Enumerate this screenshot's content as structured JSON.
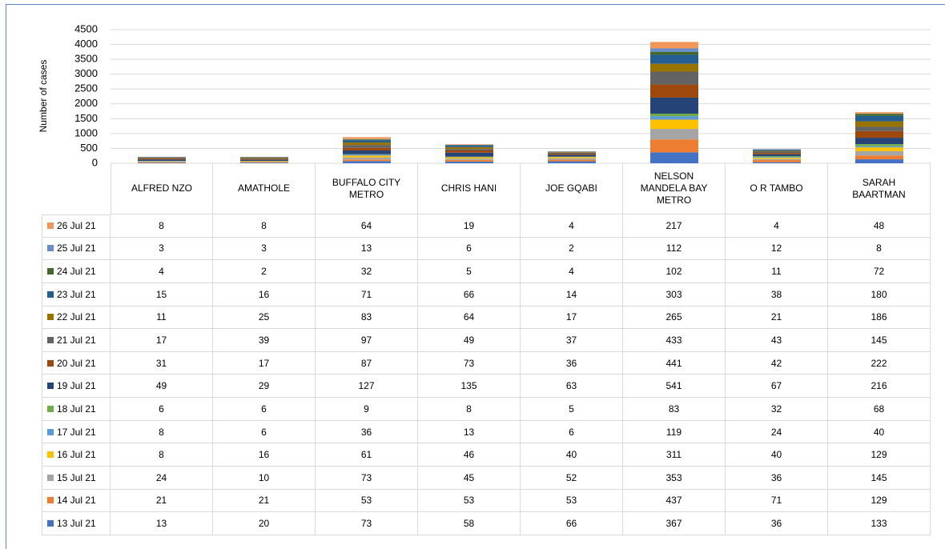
{
  "chart_data": {
    "type": "bar",
    "stacked": true,
    "y_label": "Number of cases",
    "categories": [
      "ALFRED NZO",
      "AMATHOLE",
      "BUFFALO CITY METRO",
      "CHRIS HANI",
      "JOE GQABI",
      "NELSON MANDELA BAY METRO",
      "O R TAMBO",
      "SARAH BAARTMAN"
    ],
    "ylim": [
      0,
      4500
    ],
    "yticks": [
      0,
      500,
      1000,
      1500,
      2000,
      2500,
      3000,
      3500,
      4000,
      4500
    ],
    "grid": true,
    "series": [
      {
        "name": "13 Jul 21",
        "color": "#4472c4",
        "values": [
          13,
          20,
          73,
          58,
          66,
          367,
          36,
          133
        ]
      },
      {
        "name": "14 Jul 21",
        "color": "#ed7d31",
        "values": [
          21,
          21,
          53,
          53,
          53,
          437,
          71,
          129
        ]
      },
      {
        "name": "15 Jul 21",
        "color": "#a5a5a5",
        "values": [
          24,
          10,
          73,
          45,
          52,
          353,
          36,
          145
        ]
      },
      {
        "name": "16 Jul 21",
        "color": "#ffc000",
        "values": [
          8,
          16,
          61,
          46,
          40,
          311,
          40,
          129
        ]
      },
      {
        "name": "17 Jul 21",
        "color": "#5b9bd5",
        "values": [
          8,
          6,
          36,
          13,
          6,
          119,
          24,
          40
        ]
      },
      {
        "name": "18 Jul 21",
        "color": "#70ad47",
        "values": [
          6,
          6,
          9,
          8,
          5,
          83,
          32,
          68
        ]
      },
      {
        "name": "19 Jul 21",
        "color": "#264478",
        "values": [
          49,
          29,
          127,
          135,
          63,
          541,
          67,
          216
        ]
      },
      {
        "name": "20 Jul 21",
        "color": "#9e480e",
        "values": [
          31,
          17,
          87,
          73,
          36,
          441,
          42,
          222
        ]
      },
      {
        "name": "21 Jul 21",
        "color": "#636363",
        "values": [
          17,
          39,
          97,
          49,
          37,
          433,
          43,
          145
        ]
      },
      {
        "name": "22 Jul 21",
        "color": "#997300",
        "values": [
          11,
          25,
          83,
          64,
          17,
          265,
          21,
          186
        ]
      },
      {
        "name": "23 Jul 21",
        "color": "#255e91",
        "values": [
          15,
          16,
          71,
          66,
          14,
          303,
          38,
          180
        ]
      },
      {
        "name": "24 Jul 21",
        "color": "#43682b",
        "values": [
          4,
          2,
          32,
          5,
          4,
          102,
          11,
          72
        ]
      },
      {
        "name": "25 Jul 21",
        "color": "#698ed0",
        "values": [
          3,
          3,
          13,
          6,
          2,
          112,
          12,
          8
        ]
      },
      {
        "name": "26 Jul 21",
        "color": "#f1975a",
        "values": [
          8,
          8,
          64,
          19,
          4,
          217,
          4,
          48
        ]
      }
    ]
  }
}
